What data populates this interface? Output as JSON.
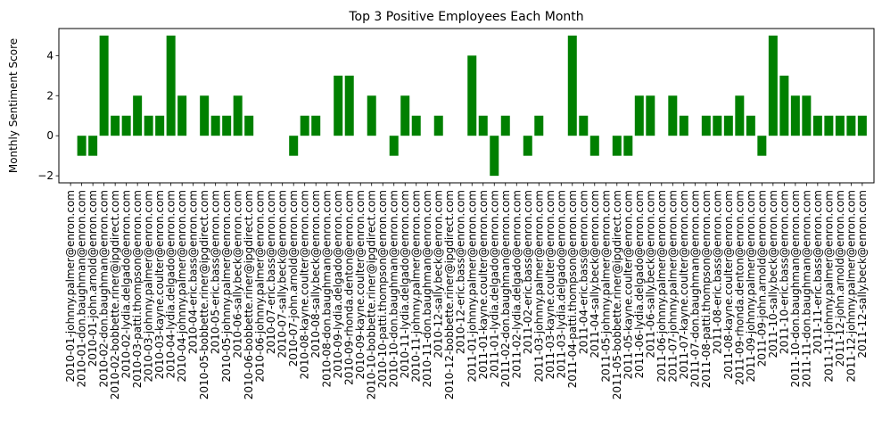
{
  "chart_data": {
    "type": "bar",
    "title": "Top 3 Positive Employees Each Month",
    "xlabel": "",
    "ylabel": "Monthly Sentiment Score",
    "ylim": [
      -2.35,
      5.35
    ],
    "yticks": [
      -2,
      0,
      2,
      4
    ],
    "grid": false,
    "bar_color": "#008000",
    "categories": [
      "2010-01-johnny.palmer@enron.com",
      "2010-01-don.baughman@enron.com",
      "2010-01-john.arnold@enron.com",
      "2010-02-don.baughman@enron.com",
      "2010-02-bobbette.riner@ipgdirect.com",
      "2010-02-lydia.delgado@enron.com",
      "2010-03-patti.thompson@enron.com",
      "2010-03-johnny.palmer@enron.com",
      "2010-03-kayne.coulter@enron.com",
      "2010-04-lydia.delgado@enron.com",
      "2010-04-johnny.palmer@enron.com",
      "2010-04-eric.bass@enron.com",
      "2010-05-bobbette.riner@ipgdirect.com",
      "2010-05-eric.bass@enron.com",
      "2010-05-johnny.palmer@enron.com",
      "2010-06-sally.beck@enron.com",
      "2010-06-bobbette.riner@ipgdirect.com",
      "2010-06-johnny.palmer@enron.com",
      "2010-07-eric.bass@enron.com",
      "2010-07-sally.beck@enron.com",
      "2010-07-john.arnold@enron.com",
      "2010-08-kayne.coulter@enron.com",
      "2010-08-sally.beck@enron.com",
      "2010-08-don.baughman@enron.com",
      "2010-09-lydia.delgado@enron.com",
      "2010-09-rhonda.denton@enron.com",
      "2010-09-kayne.coulter@enron.com",
      "2010-10-bobbette.riner@ipgdirect.com",
      "2010-10-patti.thompson@enron.com",
      "2010-10-don.baughman@enron.com",
      "2010-11-lydia.delgado@enron.com",
      "2010-11-johnny.palmer@enron.com",
      "2010-11-don.baughman@enron.com",
      "2010-12-sally.beck@enron.com",
      "2010-12-bobbette.riner@ipgdirect.com",
      "2010-12-eric.bass@enron.com",
      "2011-01-johnny.palmer@enron.com",
      "2011-01-kayne.coulter@enron.com",
      "2011-01-lydia.delgado@enron.com",
      "2011-02-don.baughman@enron.com",
      "2011-02-lydia.delgado@enron.com",
      "2011-02-eric.bass@enron.com",
      "2011-03-johnny.palmer@enron.com",
      "2011-03-kayne.coulter@enron.com",
      "2011-03-lydia.delgado@enron.com",
      "2011-04-patti.thompson@enron.com",
      "2011-04-eric.bass@enron.com",
      "2011-04-sally.beck@enron.com",
      "2011-05-johnny.palmer@enron.com",
      "2011-05-bobbette.riner@ipgdirect.com",
      "2011-05-kayne.coulter@enron.com",
      "2011-06-lydia.delgado@enron.com",
      "2011-06-sally.beck@enron.com",
      "2011-06-johnny.palmer@enron.com",
      "2011-07-johnny.palmer@enron.com",
      "2011-07-kayne.coulter@enron.com",
      "2011-07-don.baughman@enron.com",
      "2011-08-patti.thompson@enron.com",
      "2011-08-eric.bass@enron.com",
      "2011-08-kayne.coulter@enron.com",
      "2011-09-rhonda.denton@enron.com",
      "2011-09-johnny.palmer@enron.com",
      "2011-09-john.arnold@enron.com",
      "2011-10-sally.beck@enron.com",
      "2011-10-eric.bass@enron.com",
      "2011-10-don.baughman@enron.com",
      "2011-11-don.baughman@enron.com",
      "2011-11-eric.bass@enron.com",
      "2011-11-johnny.palmer@enron.com",
      "2011-12-john.arnold@enron.com",
      "2011-12-johnny.palmer@enron.com",
      "2011-12-sally.beck@enron.com"
    ],
    "values": [
      0,
      -1,
      -1,
      5,
      1,
      1,
      2,
      1,
      1,
      5,
      2,
      0,
      2,
      1,
      1,
      2,
      1,
      0,
      0,
      0,
      -1,
      1,
      1,
      0,
      3,
      3,
      0,
      2,
      0,
      -1,
      2,
      1,
      0,
      1,
      0,
      0,
      4,
      1,
      -2,
      1,
      0,
      -1,
      1,
      0,
      0,
      5,
      1,
      -1,
      0,
      -1,
      -1,
      2,
      2,
      0,
      2,
      1,
      0,
      1,
      1,
      1,
      2,
      1,
      -1,
      5,
      3,
      2,
      2,
      1,
      1,
      1,
      1,
      1
    ]
  }
}
